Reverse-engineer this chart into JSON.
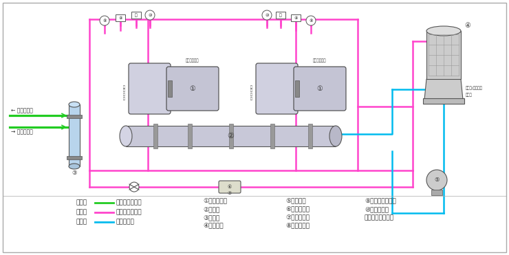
{
  "bg_color": "#ffffff",
  "border_color": "#888888",
  "magenta": "#ff44cc",
  "cyan": "#00bbee",
  "green": "#22cc22",
  "dark": "#333333",
  "gray": "#888888",
  "lw_pipe": 1.8,
  "legend": {
    "green_label": "绿色线",
    "green_text": "载冷剂循环回路",
    "red_label": "红色线",
    "red_text": "制冷剂循环回路",
    "blue_label": "蓝色线",
    "blue_text": "水循环回路"
  },
  "comp_col1": [
    "①螺杆压缩机",
    "②冷凝器",
    "③蒸发器",
    "④冷却水塔"
  ],
  "comp_col2": [
    "⑤冷却水泵",
    "⑥干燥过滤器",
    "⑦供液膨胀阀",
    "⑧低压压力表"
  ],
  "comp_col3": [
    "⑨低压压力控制器",
    "⑩高压压力表",
    "⑪高压压力控制器"
  ]
}
